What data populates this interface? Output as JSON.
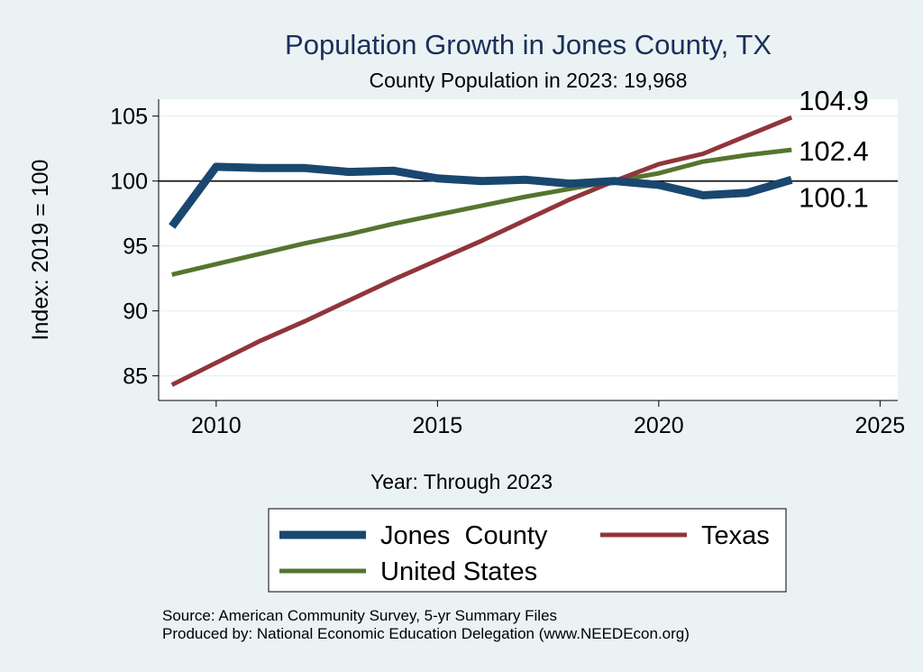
{
  "colors": {
    "background": "#eaf2f3",
    "plot_background": "#ffffff",
    "title": "#1a2f5a",
    "gridline": "#eaf2f3",
    "reference_line": "#000000"
  },
  "chart_data": {
    "type": "line",
    "title": "Population Growth in Jones County, TX",
    "subtitle": "County Population in 2023: 19,968",
    "xlabel": "Year: Through 2023",
    "ylabel": "Index: 2019 = 100",
    "xlim": [
      2008.7,
      2025.4
    ],
    "ylim": [
      83.1,
      106.3
    ],
    "x_ticks": [
      "2010",
      "2015",
      "2020",
      "2025"
    ],
    "y_ticks": [
      "85",
      "90",
      "95",
      "100",
      "105"
    ],
    "grid": true,
    "reference_line": 100,
    "legend_position": "bottom",
    "x": [
      2009,
      2010,
      2011,
      2012,
      2013,
      2014,
      2015,
      2016,
      2017,
      2018,
      2019,
      2020,
      2021,
      2022,
      2023
    ],
    "series": [
      {
        "name": "Jones  County",
        "color": "#1a476f",
        "values": [
          96.5,
          101.1,
          101.0,
          101.0,
          100.7,
          100.8,
          100.2,
          100.0,
          100.1,
          99.8,
          100.0,
          99.7,
          98.9,
          99.1,
          100.1
        ],
        "end_label": "100.1"
      },
      {
        "name": "Texas",
        "color": "#90353b",
        "values": [
          84.3,
          86.0,
          87.7,
          89.2,
          90.8,
          92.4,
          93.9,
          95.4,
          97.0,
          98.6,
          100.0,
          101.3,
          102.1,
          103.5,
          104.9
        ],
        "end_label": "104.9"
      },
      {
        "name": "United States",
        "color": "#55752f",
        "values": [
          92.8,
          93.6,
          94.4,
          95.2,
          95.9,
          96.7,
          97.4,
          98.1,
          98.8,
          99.4,
          100.0,
          100.6,
          101.5,
          102.0,
          102.4
        ],
        "end_label": "102.4"
      }
    ]
  },
  "source": {
    "line1": "Source: American Community Survey, 5-yr Summary Files",
    "line2": "Produced by: National Economic Education Delegation (www.NEEDEcon.org)"
  }
}
